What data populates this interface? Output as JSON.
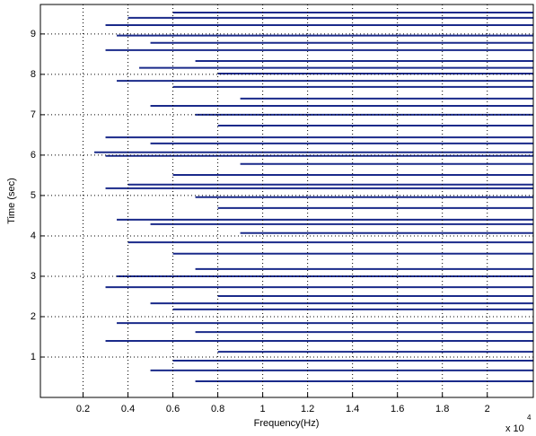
{
  "chart_data": {
    "type": "spectral-lines",
    "x_label": "Frequency(Hz)",
    "y_label": "Time (sec)",
    "x_exponent_base": "x 10",
    "x_exponent": "4",
    "color": "#1a2a8a",
    "grid": true,
    "xlim": [
      0.01,
      2.205
    ],
    "ylim": [
      0,
      9.73
    ],
    "xticks": [
      0.2,
      0.4,
      0.6,
      0.8,
      1,
      1.2,
      1.4,
      1.6,
      1.8,
      2
    ],
    "yticks": [
      1,
      2,
      3,
      4,
      5,
      6,
      7,
      8,
      9
    ],
    "values": [
      9.53,
      9.4,
      9.22,
      8.96,
      8.78,
      8.6,
      8.33,
      8.16,
      8.02,
      7.84,
      7.69,
      7.4,
      7.22,
      7.0,
      6.73,
      6.44,
      6.29,
      6.07,
      5.98,
      5.78,
      5.51,
      5.27,
      5.18,
      4.96,
      4.69,
      4.4,
      4.29,
      4.07,
      3.84,
      3.56,
      3.18,
      3.0,
      2.73,
      2.51,
      2.33,
      2.18,
      1.84,
      1.62,
      1.4,
      1.13,
      0.91,
      0.67,
      0.4
    ],
    "x": [
      0.6,
      0.4,
      0.3,
      0.35,
      0.5,
      0.3,
      0.7,
      0.45,
      0.8,
      0.35,
      0.6,
      0.9,
      0.5,
      0.7,
      0.8,
      0.3,
      0.5,
      0.25,
      0.3,
      0.9,
      0.6,
      0.4,
      0.3,
      0.7,
      0.8,
      0.35,
      0.5,
      0.9,
      0.4,
      0.6,
      0.7,
      0.35,
      0.3,
      0.8,
      0.5,
      0.6,
      0.35,
      0.7,
      0.3,
      0.8,
      0.6,
      0.5,
      0.7
    ]
  }
}
